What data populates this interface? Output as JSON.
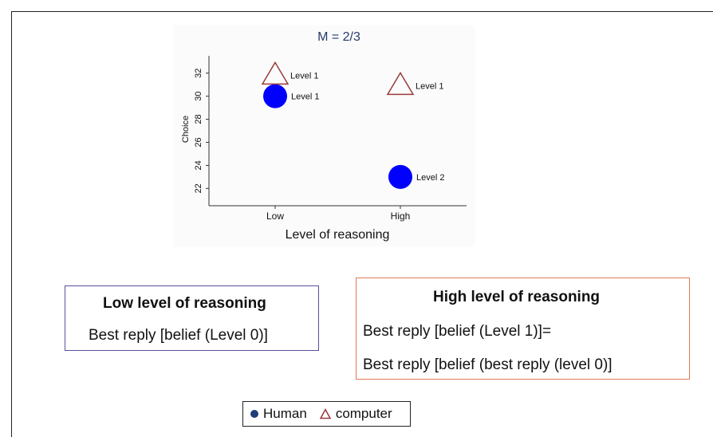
{
  "chart_data": {
    "type": "scatter",
    "title": "M = 2/3",
    "xlabel": "Level of reasoning",
    "ylabel": "Choice",
    "categories": [
      "Low",
      "High"
    ],
    "yticks": [
      22,
      24,
      26,
      28,
      30,
      32
    ],
    "ylim": [
      20.5,
      33.5
    ],
    "series": [
      {
        "name": "Human",
        "marker": "circle",
        "color": "#0000ff",
        "points": [
          {
            "x": "Low",
            "y": 30,
            "label": "Level 1"
          },
          {
            "x": "High",
            "y": 23,
            "label": "Level 2"
          }
        ]
      },
      {
        "name": "computer",
        "marker": "triangle",
        "color": "#9b3a3a",
        "points": [
          {
            "x": "Low",
            "y": 31.8,
            "label": "Level 1"
          },
          {
            "x": "High",
            "y": 30.9,
            "label": "Level 1"
          }
        ]
      }
    ],
    "grid": false,
    "legend_position": "bottom-center"
  },
  "boxes": {
    "low": {
      "title": "Low level of reasoning",
      "line1": "Best reply [belief (Level 0)]"
    },
    "high": {
      "title": "High level of reasoning",
      "line1": "Best reply [belief (Level 1)]=",
      "line2": "Best reply [belief (best reply (level 0)]"
    }
  },
  "legend": {
    "human_label": "Human",
    "computer_label": "computer"
  }
}
